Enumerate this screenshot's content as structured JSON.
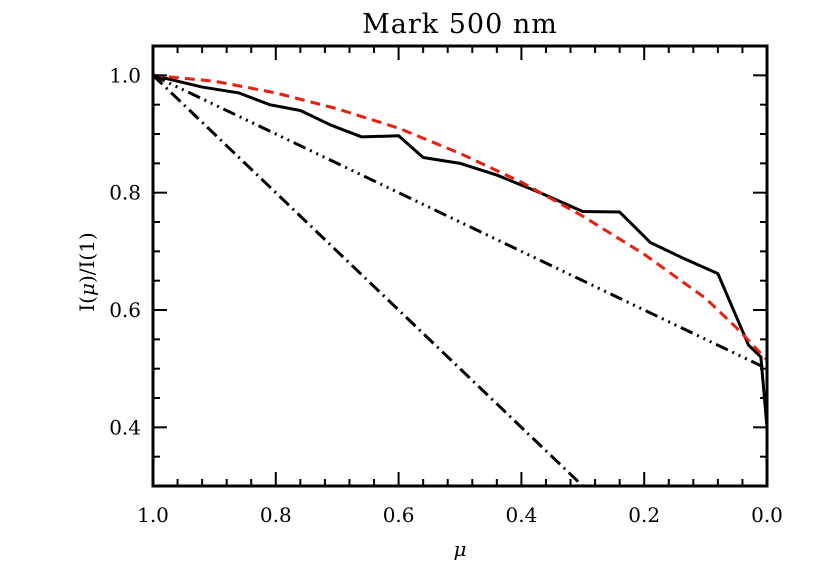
{
  "chart_data": {
    "type": "line",
    "title": "Mark 500 nm",
    "xlabel": "μ",
    "ylabel_parts": [
      "I(",
      "μ",
      ")/I(1)"
    ],
    "xlim": [
      1.0,
      0.0
    ],
    "ylim": [
      0.3,
      1.05
    ],
    "xticks": [
      1.0,
      0.8,
      0.6,
      0.4,
      0.2,
      0.0
    ],
    "xtick_labels": [
      "1.0",
      "0.8",
      "0.6",
      "0.4",
      "0.2",
      "0.0"
    ],
    "yticks": [
      0.4,
      0.6,
      0.8,
      1.0
    ],
    "ytick_labels": [
      "0.4",
      "0.6",
      "0.8",
      "1.0"
    ],
    "grid": false,
    "series": [
      {
        "style": "solid",
        "color": "#000000",
        "x": [
          1.0,
          0.92,
          0.86,
          0.81,
          0.76,
          0.71,
          0.66,
          0.6,
          0.56,
          0.5,
          0.44,
          0.37,
          0.3,
          0.24,
          0.19,
          0.14,
          0.08,
          0.03,
          0.01,
          0.0
        ],
        "y": [
          1.0,
          0.98,
          0.97,
          0.95,
          0.94,
          0.915,
          0.895,
          0.897,
          0.86,
          0.85,
          0.83,
          0.8,
          0.768,
          0.767,
          0.715,
          0.69,
          0.662,
          0.54,
          0.52,
          0.4
        ]
      },
      {
        "style": "dashed",
        "color": "#e8200f",
        "x": [
          1.0,
          0.9,
          0.8,
          0.7,
          0.6,
          0.5,
          0.4,
          0.3,
          0.2,
          0.1,
          0.05,
          0.0
        ],
        "y": [
          1.0,
          0.99,
          0.97,
          0.943,
          0.91,
          0.867,
          0.818,
          0.76,
          0.695,
          0.62,
          0.57,
          0.515
        ]
      },
      {
        "style": "dash-dot-dot-dot",
        "color": "#000000",
        "x": [
          1.0,
          0.0
        ],
        "y": [
          1.0,
          0.5
        ]
      },
      {
        "style": "dash-dot",
        "color": "#000000",
        "x": [
          1.0,
          0.3
        ],
        "y": [
          1.0,
          0.3
        ]
      }
    ]
  }
}
